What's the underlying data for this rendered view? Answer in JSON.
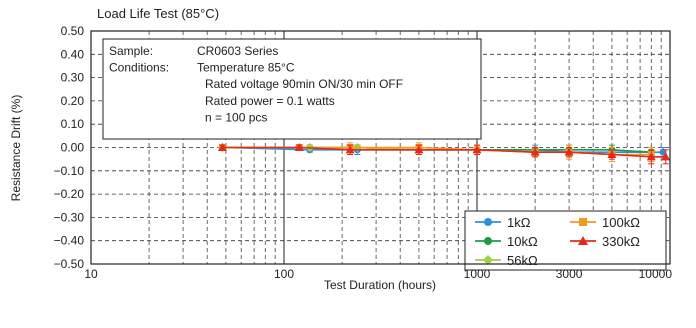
{
  "chart_data": {
    "type": "line",
    "title": "Load Life Test (85°C)",
    "xlabel": "Test Duration (hours)",
    "ylabel": "Resistance Drift (%)",
    "x_scale": "log",
    "xlim": [
      10,
      10000
    ],
    "ylim": [
      -0.5,
      0.5
    ],
    "grid": true,
    "x_ticks": [
      10,
      100,
      1000,
      3000,
      10000
    ],
    "x_tick_labels": [
      "10",
      "100",
      "1000",
      "3000",
      "10000"
    ],
    "y_ticks": [
      0.5,
      0.4,
      0.3,
      0.2,
      0.1,
      0.0,
      -0.1,
      -0.2,
      -0.3,
      -0.4,
      -0.5
    ],
    "y_tick_labels": [
      "0.50",
      "0.40",
      "0.30",
      "0.20",
      "0.10",
      "0.00",
      "−0.10",
      "−0.20",
      "−0.30",
      "−0.40",
      "−0.50"
    ],
    "info_box": {
      "lines": [
        {
          "label": "Sample:",
          "value": "CR0603 Series"
        },
        {
          "label": "Conditions:",
          "value": "Temperature 85°C"
        },
        {
          "label": "",
          "value": "Rated voltage 90min ON/30 min OFF"
        },
        {
          "label": "",
          "value": "Rated power = 0.1 watts"
        },
        {
          "label": "",
          "value": "n = 100 pcs"
        }
      ]
    },
    "legend_position": "bottom-right",
    "series": [
      {
        "name": "1kΩ",
        "color": "#2f8fd8",
        "marker": "circle",
        "x": [
          48,
          136,
          240,
          500,
          1000,
          2000,
          3000,
          5000,
          8000,
          9200
        ],
        "y": [
          0.0,
          -0.01,
          -0.01,
          -0.01,
          -0.01,
          -0.01,
          -0.02,
          -0.02,
          -0.02,
          -0.02
        ],
        "err": [
          0.01,
          0.01,
          0.02,
          0.02,
          0.02,
          0.02,
          0.02,
          0.02,
          0.02,
          0.02
        ]
      },
      {
        "name": "10kΩ",
        "color": "#1f9a4a",
        "marker": "circle",
        "x": [
          48,
          136,
          240,
          500,
          1000,
          2000,
          3000,
          5000,
          8000
        ],
        "y": [
          0.0,
          0.0,
          0.0,
          -0.01,
          -0.01,
          -0.01,
          -0.01,
          -0.01,
          -0.02
        ],
        "err": [
          0.01,
          0.01,
          0.01,
          0.01,
          0.01,
          0.01,
          0.02,
          0.02,
          0.02
        ]
      },
      {
        "name": "56kΩ",
        "color": "#9ed14a",
        "marker": "diamond",
        "x": [
          48,
          136,
          240,
          500,
          1000,
          2000,
          3000,
          5000
        ],
        "y": [
          0.0,
          0.0,
          0.0,
          -0.01,
          -0.01,
          -0.02,
          -0.02,
          -0.03
        ],
        "err": [
          0.01,
          0.01,
          0.01,
          0.01,
          0.02,
          0.02,
          0.02,
          0.02
        ]
      },
      {
        "name": "100kΩ",
        "color": "#f29a1e",
        "marker": "square",
        "x": [
          48,
          120,
          220,
          500,
          1000,
          2000,
          3000,
          5000,
          8000
        ],
        "y": [
          0.0,
          0.0,
          0.0,
          0.0,
          -0.01,
          -0.02,
          -0.02,
          -0.03,
          -0.03
        ],
        "err": [
          0.01,
          0.01,
          0.02,
          0.02,
          0.02,
          0.02,
          0.03,
          0.03,
          0.03
        ]
      },
      {
        "name": "330kΩ",
        "color": "#e32a1c",
        "marker": "triangle",
        "x": [
          48,
          120,
          220,
          500,
          1000,
          2000,
          3000,
          5000,
          8000,
          9500
        ],
        "y": [
          0.0,
          0.0,
          -0.01,
          -0.01,
          -0.01,
          -0.02,
          -0.02,
          -0.03,
          -0.04,
          -0.04
        ],
        "err": [
          0.01,
          0.01,
          0.02,
          0.02,
          0.02,
          0.02,
          0.02,
          0.02,
          0.03,
          0.03
        ]
      }
    ]
  }
}
